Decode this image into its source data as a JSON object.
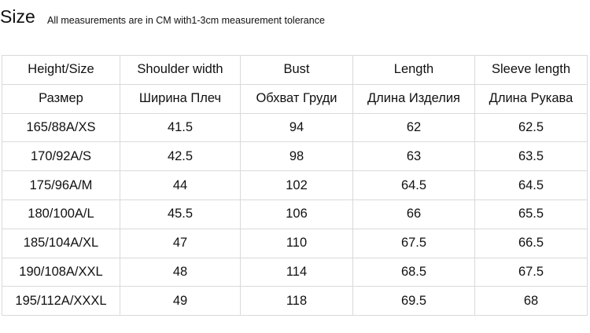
{
  "header": {
    "title": "Size",
    "note": "All measurements are in CM with1-3cm measurement tolerance"
  },
  "table": {
    "rows": [
      [
        "Height/Size",
        "Shoulder width",
        "Bust",
        "Length",
        "Sleeve length"
      ],
      [
        "Размер",
        "Ширина Плеч",
        "Обхват Груди",
        "Длина Изделия",
        "Длина Рукава"
      ],
      [
        "165/88A/XS",
        "41.5",
        "94",
        "62",
        "62.5"
      ],
      [
        "170/92A/S",
        "42.5",
        "98",
        "63",
        "63.5"
      ],
      [
        "175/96A/M",
        "44",
        "102",
        "64.5",
        "64.5"
      ],
      [
        "180/100A/L",
        "45.5",
        "106",
        "66",
        "65.5"
      ],
      [
        "185/104A/XL",
        "47",
        "110",
        "67.5",
        "66.5"
      ],
      [
        "190/108A/XXL",
        "48",
        "114",
        "68.5",
        "67.5"
      ],
      [
        "195/112A/XXXL",
        "49",
        "118",
        "69.5",
        "68"
      ]
    ]
  }
}
